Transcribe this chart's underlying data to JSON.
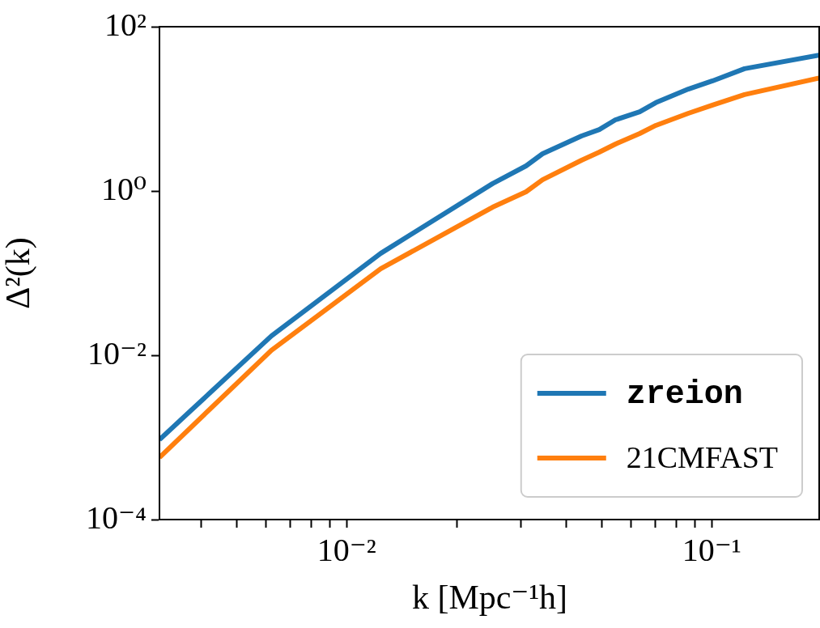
{
  "chart_data": {
    "type": "line",
    "xlabel": "k [Mpc⁻¹h]",
    "ylabel": "Δ²(k)",
    "log": "xy",
    "grid": false,
    "legend": "bottom right",
    "marker": "none",
    "line_style": "solid",
    "xlim": [
      0.00307,
      0.198
    ],
    "ylim": [
      0.0001,
      100
    ],
    "xticks": [
      {
        "value": 0.004,
        "label": null
      },
      {
        "value": 0.005,
        "label": null
      },
      {
        "value": 0.006,
        "label": null
      },
      {
        "value": 0.007,
        "label": null
      },
      {
        "value": 0.008,
        "label": null
      },
      {
        "value": 0.009,
        "label": null
      },
      {
        "value": 0.01,
        "label": "10⁻²"
      },
      {
        "value": 0.02,
        "label": null
      },
      {
        "value": 0.03,
        "label": null
      },
      {
        "value": 0.04,
        "label": null
      },
      {
        "value": 0.05,
        "label": null
      },
      {
        "value": 0.06,
        "label": null
      },
      {
        "value": 0.07,
        "label": null
      },
      {
        "value": 0.08,
        "label": null
      },
      {
        "value": 0.09,
        "label": null
      },
      {
        "value": 0.1,
        "label": "10⁻¹"
      }
    ],
    "yticks": [
      {
        "value": 0.0001,
        "label": "10⁻⁴"
      },
      {
        "value": 0.01,
        "label": "10⁻²"
      },
      {
        "value": 1,
        "label": "10⁰"
      },
      {
        "value": 100,
        "label": "10²"
      }
    ],
    "series": [
      {
        "name": "zreion",
        "color": "#1f77b4",
        "x": [
          0.00307,
          0.00622,
          0.01239,
          0.0251,
          0.031,
          0.0344,
          0.044,
          0.0492,
          0.0545,
          0.0635,
          0.0703,
          0.0863,
          0.1005,
          0.123,
          0.198
        ],
        "values": [
          0.00094,
          0.0172,
          0.174,
          1.23,
          2.02,
          2.84,
          4.68,
          5.6,
          7.36,
          9.2,
          11.9,
          17.4,
          21.9,
          30.8,
          45.2
        ]
      },
      {
        "name": "21CMFAST",
        "color": "#ff7f0e",
        "x": [
          0.00307,
          0.00622,
          0.01239,
          0.0251,
          0.031,
          0.0344,
          0.044,
          0.0492,
          0.0545,
          0.0635,
          0.0703,
          0.0863,
          0.1005,
          0.123,
          0.198
        ],
        "values": [
          0.00057,
          0.0115,
          0.113,
          0.635,
          0.977,
          1.37,
          2.37,
          2.97,
          3.73,
          5.01,
          6.29,
          8.83,
          11.1,
          14.9,
          23.9
        ]
      }
    ]
  }
}
